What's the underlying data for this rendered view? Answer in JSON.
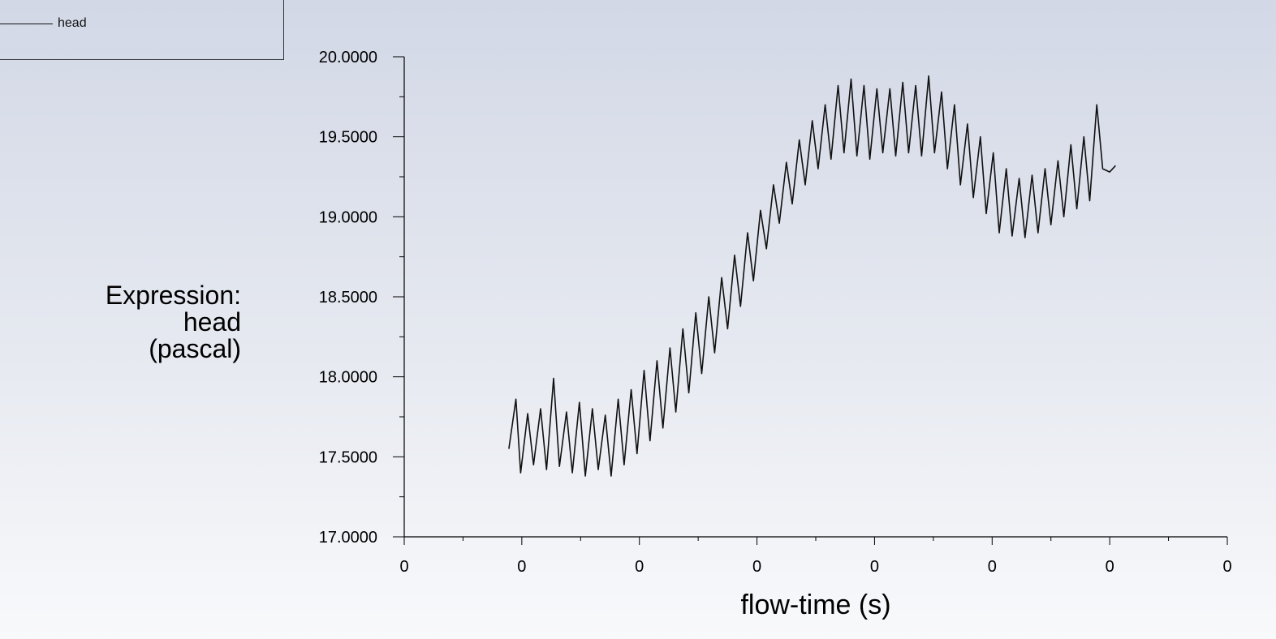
{
  "legend": {
    "label": "head",
    "line_color": "#111111"
  },
  "chart_data": {
    "type": "line",
    "title": "",
    "xlabel": "flow-time (s)",
    "ylabel_lines": [
      "Expression:",
      "head",
      "(pascal)"
    ],
    "ylim": [
      17.0,
      20.0
    ],
    "yticks": [
      "17.0000",
      "17.5000",
      "18.0000",
      "18.5000",
      "19.0000",
      "19.5000",
      "20.0000"
    ],
    "xticks": [
      "0",
      "0",
      "0",
      "0",
      "0",
      "0",
      "0",
      "0"
    ],
    "xlim": [
      0,
      7
    ],
    "grid": false,
    "legend_position": "top-left",
    "series": [
      {
        "name": "head",
        "color": "#111111",
        "x": [
          0.89,
          0.95,
          0.99,
          1.05,
          1.1,
          1.16,
          1.21,
          1.27,
          1.32,
          1.38,
          1.43,
          1.49,
          1.54,
          1.6,
          1.65,
          1.71,
          1.76,
          1.82,
          1.87,
          1.93,
          1.98,
          2.04,
          2.09,
          2.15,
          2.2,
          2.26,
          2.31,
          2.37,
          2.42,
          2.48,
          2.53,
          2.59,
          2.64,
          2.7,
          2.75,
          2.81,
          2.86,
          2.92,
          2.97,
          3.03,
          3.08,
          3.14,
          3.19,
          3.25,
          3.3,
          3.36,
          3.41,
          3.47,
          3.52,
          3.58,
          3.63,
          3.69,
          3.74,
          3.8,
          3.85,
          3.91,
          3.96,
          4.02,
          4.07,
          4.13,
          4.18,
          4.24,
          4.29,
          4.35,
          4.4,
          4.46,
          4.51,
          4.57,
          4.62,
          4.68,
          4.73,
          4.79,
          4.84,
          4.9,
          4.95,
          5.01,
          5.06,
          5.12,
          5.17,
          5.23,
          5.28,
          5.34,
          5.39,
          5.45,
          5.5,
          5.56,
          5.61,
          5.67,
          5.72,
          5.78,
          5.83,
          5.89,
          5.94,
          6.0,
          6.05
        ],
        "y": [
          17.55,
          17.86,
          17.4,
          17.77,
          17.45,
          17.8,
          17.42,
          17.99,
          17.44,
          17.78,
          17.4,
          17.84,
          17.38,
          17.8,
          17.42,
          17.76,
          17.38,
          17.86,
          17.45,
          17.92,
          17.52,
          18.04,
          17.6,
          18.1,
          17.68,
          18.18,
          17.78,
          18.3,
          17.9,
          18.4,
          18.02,
          18.5,
          18.15,
          18.62,
          18.3,
          18.76,
          18.44,
          18.9,
          18.6,
          19.04,
          18.8,
          19.2,
          18.96,
          19.34,
          19.08,
          19.48,
          19.2,
          19.6,
          19.3,
          19.7,
          19.36,
          19.82,
          19.4,
          19.86,
          19.38,
          19.82,
          19.36,
          19.8,
          19.4,
          19.8,
          19.38,
          19.84,
          19.4,
          19.82,
          19.38,
          19.88,
          19.4,
          19.78,
          19.3,
          19.7,
          19.2,
          19.58,
          19.12,
          19.5,
          19.02,
          19.4,
          18.9,
          19.3,
          18.88,
          19.24,
          18.87,
          19.26,
          18.9,
          19.3,
          18.95,
          19.35,
          19.0,
          19.45,
          19.05,
          19.5,
          19.1,
          19.7,
          19.3,
          19.28,
          19.32
        ]
      }
    ]
  }
}
